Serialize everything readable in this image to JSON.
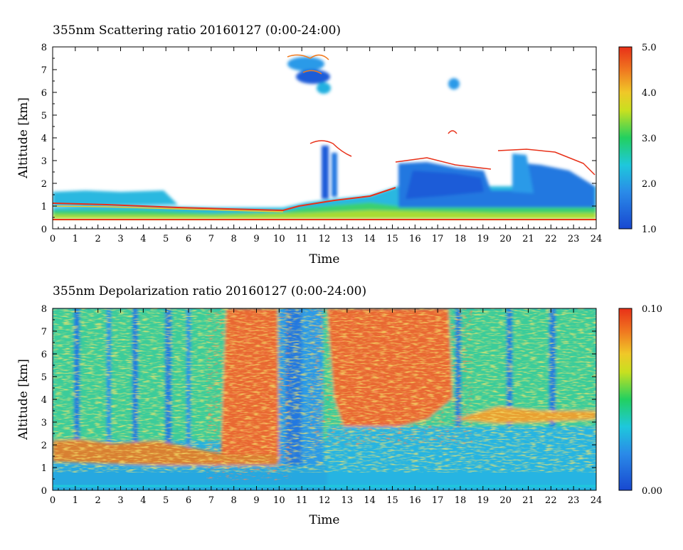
{
  "chart_data": [
    {
      "type": "heatmap",
      "title": "355nm Scattering ratio  20160127 (0:00-24:00)",
      "xlabel": "Time",
      "ylabel": "Altitude [km]",
      "xlim": [
        0,
        24
      ],
      "ylim": [
        0,
        8
      ],
      "x_ticks": [
        "0",
        "1",
        "2",
        "3",
        "4",
        "5",
        "6",
        "7",
        "8",
        "9",
        "10",
        "11",
        "12",
        "13",
        "14",
        "15",
        "16",
        "17",
        "18",
        "19",
        "20",
        "21",
        "22",
        "23",
        "24"
      ],
      "y_ticks": [
        "0",
        "1",
        "2",
        "3",
        "4",
        "5",
        "6",
        "7",
        "8"
      ],
      "colorbar": {
        "range": [
          1.0,
          5.0
        ],
        "labels": [
          "5.0",
          "4.0",
          "3.0",
          "2.0",
          "1.0"
        ],
        "values": [
          5.0,
          4.0,
          3.0,
          2.0,
          1.0
        ]
      },
      "description_regions": [
        {
          "time": [
            0,
            10
          ],
          "alt": [
            0.4,
            1.5
          ],
          "value": 2.5
        },
        {
          "time": [
            10,
            15
          ],
          "alt": [
            0.4,
            1.7
          ],
          "value": 2.3
        },
        {
          "time": [
            15.3,
            19
          ],
          "alt": [
            0.4,
            2.8
          ],
          "value": 1.6
        },
        {
          "time": [
            19,
            24
          ],
          "alt": [
            0.4,
            2.4
          ],
          "value": 1.7
        },
        {
          "time": [
            10.3,
            11.9
          ],
          "alt": [
            6.2,
            7.6
          ],
          "value": 1.8
        },
        {
          "time": [
            11.8,
            12.6
          ],
          "alt": [
            1.3,
            3.8
          ],
          "value": 1.5
        }
      ]
    },
    {
      "type": "heatmap",
      "title": "355nm Depolarization ratio  20160127 (0:00-24:00)",
      "xlabel": "Time",
      "ylabel": "Altitude [km]",
      "xlim": [
        0,
        24
      ],
      "ylim": [
        0,
        8
      ],
      "x_ticks": [
        "0",
        "1",
        "2",
        "3",
        "4",
        "5",
        "6",
        "7",
        "8",
        "9",
        "10",
        "11",
        "12",
        "13",
        "14",
        "15",
        "16",
        "17",
        "18",
        "19",
        "20",
        "21",
        "22",
        "23",
        "24"
      ],
      "y_ticks": [
        "0",
        "1",
        "2",
        "3",
        "4",
        "5",
        "6",
        "7",
        "8"
      ],
      "colorbar": {
        "range": [
          0.0,
          0.1
        ],
        "labels": [
          "0.10",
          "0.00"
        ],
        "values": [
          0.1,
          0.0
        ]
      },
      "description_regions": [
        {
          "time": [
            0,
            7.5
          ],
          "alt": [
            2.0,
            8.0
          ],
          "value": 0.045
        },
        {
          "time": [
            7.5,
            10
          ],
          "alt": [
            1.5,
            8.0
          ],
          "value": 0.085
        },
        {
          "time": [
            10,
            11.8
          ],
          "alt": [
            0.5,
            8.0
          ],
          "value": 0.03
        },
        {
          "time": [
            12,
            17.5
          ],
          "alt": [
            2.5,
            8.0
          ],
          "value": 0.085
        },
        {
          "time": [
            17.5,
            24
          ],
          "alt": [
            3.5,
            8.0
          ],
          "value": 0.04
        },
        {
          "time": [
            0,
            24
          ],
          "alt": [
            0.2,
            1.0
          ],
          "value": 0.025
        }
      ]
    }
  ]
}
